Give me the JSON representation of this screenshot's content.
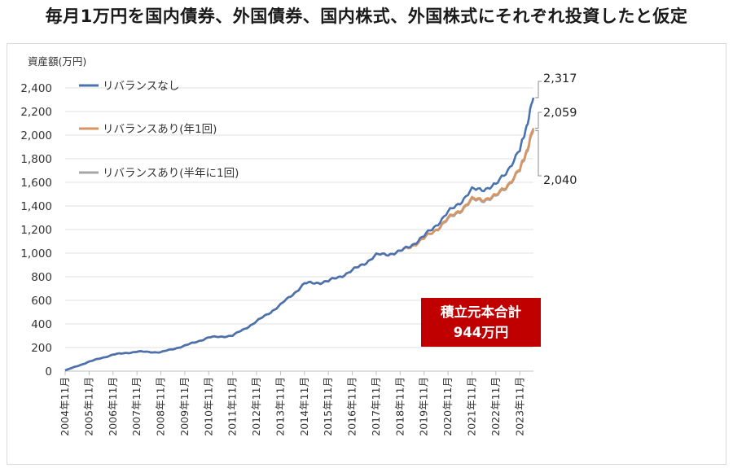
{
  "title": "毎月1万円を国内債券、外国債券、国内株式、外国株式にそれぞれ投資したと仮定",
  "note": {
    "line1": "積立元本合計",
    "line2": "944万円",
    "color": "#c00000"
  },
  "chart_data": {
    "type": "line",
    "ylabel": "資産額(万円)",
    "ylim": [
      0,
      2400
    ],
    "yticks": [
      0,
      200,
      400,
      600,
      800,
      1000,
      1200,
      1400,
      1600,
      1800,
      2000,
      2200,
      2400
    ],
    "ytick_labels": [
      "0",
      "200",
      "400",
      "600",
      "800",
      "1,000",
      "1,200",
      "1,400",
      "1,600",
      "1,800",
      "2,000",
      "2,200",
      "2,400"
    ],
    "x": [
      2004.83,
      2005.83,
      2006.83,
      2007.83,
      2008.83,
      2009.83,
      2010.83,
      2011.83,
      2012.83,
      2013.83,
      2014.83,
      2015.83,
      2016.83,
      2017.83,
      2018.83,
      2019.83,
      2020.83,
      2021.83,
      2022.83,
      2023.83,
      2024.4
    ],
    "xticks": [
      2004.83,
      2005.83,
      2006.83,
      2007.83,
      2008.83,
      2009.83,
      2010.83,
      2011.83,
      2012.83,
      2013.83,
      2014.83,
      2015.83,
      2016.83,
      2017.83,
      2018.83,
      2019.83,
      2020.83,
      2021.83,
      2022.83,
      2023.83
    ],
    "xtick_labels": [
      "2004年11月",
      "2005年11月",
      "2006年11月",
      "2007年11月",
      "2008年11月",
      "2009年11月",
      "2010年11月",
      "2011年11月",
      "2012年11月",
      "2013年11月",
      "2014年11月",
      "2015年11月",
      "2016年11月",
      "2017年11月",
      "2018年11月",
      "2019年11月",
      "2020年11月",
      "2021年11月",
      "2022年11月",
      "2023年11月"
    ],
    "legend_position": "top-left",
    "grid": "horizontal",
    "series": [
      {
        "name": "リバランスなし",
        "color": "#4a72b0",
        "end_label": "2,317",
        "values": [
          5,
          80,
          140,
          165,
          160,
          215,
          285,
          300,
          420,
          560,
          740,
          760,
          850,
          980,
          1010,
          1140,
          1340,
          1530,
          1570,
          1860,
          2317
        ]
      },
      {
        "name": "リバランスあり(年1回)",
        "color": "#d9955f",
        "end_label": "2,059",
        "values": [
          5,
          80,
          140,
          165,
          160,
          215,
          285,
          300,
          420,
          560,
          740,
          760,
          850,
          980,
          1010,
          1120,
          1290,
          1450,
          1480,
          1700,
          2059
        ]
      },
      {
        "name": "リバランスあり(半年に1回)",
        "color": "#a6a6a6",
        "end_label": "2,040",
        "values": [
          5,
          80,
          140,
          165,
          160,
          215,
          285,
          300,
          420,
          560,
          740,
          760,
          850,
          980,
          1010,
          1120,
          1280,
          1440,
          1470,
          1690,
          2040
        ]
      }
    ]
  }
}
